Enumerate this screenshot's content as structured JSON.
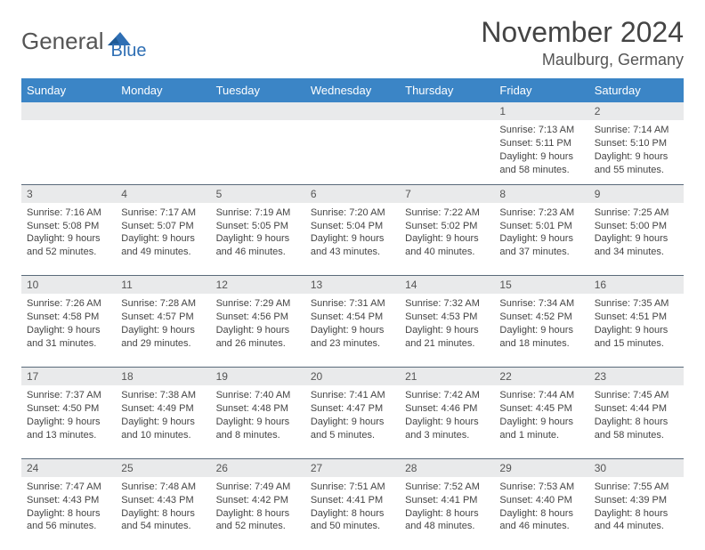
{
  "logo": {
    "part1": "General",
    "part2": "Blue"
  },
  "header": {
    "month": "November 2024",
    "location": "Maulburg, Germany"
  },
  "colors": {
    "header_bg": "#3b85c6",
    "num_row_bg": "#e9eaeb",
    "divider": "#5a6a7a",
    "logo_blue": "#2f6fb4",
    "text": "#444444",
    "background": "#ffffff"
  },
  "typography": {
    "month_fontsize": 32,
    "location_fontsize": 18,
    "dayheader_fontsize": 13,
    "cell_fontsize": 11
  },
  "columns": [
    "Sunday",
    "Monday",
    "Tuesday",
    "Wednesday",
    "Thursday",
    "Friday",
    "Saturday"
  ],
  "weeks": [
    {
      "nums": [
        "",
        "",
        "",
        "",
        "",
        "1",
        "2"
      ],
      "cells": [
        null,
        null,
        null,
        null,
        null,
        {
          "sunrise": "Sunrise: 7:13 AM",
          "sunset": "Sunset: 5:11 PM",
          "daylight1": "Daylight: 9 hours",
          "daylight2": "and 58 minutes."
        },
        {
          "sunrise": "Sunrise: 7:14 AM",
          "sunset": "Sunset: 5:10 PM",
          "daylight1": "Daylight: 9 hours",
          "daylight2": "and 55 minutes."
        }
      ]
    },
    {
      "nums": [
        "3",
        "4",
        "5",
        "6",
        "7",
        "8",
        "9"
      ],
      "cells": [
        {
          "sunrise": "Sunrise: 7:16 AM",
          "sunset": "Sunset: 5:08 PM",
          "daylight1": "Daylight: 9 hours",
          "daylight2": "and 52 minutes."
        },
        {
          "sunrise": "Sunrise: 7:17 AM",
          "sunset": "Sunset: 5:07 PM",
          "daylight1": "Daylight: 9 hours",
          "daylight2": "and 49 minutes."
        },
        {
          "sunrise": "Sunrise: 7:19 AM",
          "sunset": "Sunset: 5:05 PM",
          "daylight1": "Daylight: 9 hours",
          "daylight2": "and 46 minutes."
        },
        {
          "sunrise": "Sunrise: 7:20 AM",
          "sunset": "Sunset: 5:04 PM",
          "daylight1": "Daylight: 9 hours",
          "daylight2": "and 43 minutes."
        },
        {
          "sunrise": "Sunrise: 7:22 AM",
          "sunset": "Sunset: 5:02 PM",
          "daylight1": "Daylight: 9 hours",
          "daylight2": "and 40 minutes."
        },
        {
          "sunrise": "Sunrise: 7:23 AM",
          "sunset": "Sunset: 5:01 PM",
          "daylight1": "Daylight: 9 hours",
          "daylight2": "and 37 minutes."
        },
        {
          "sunrise": "Sunrise: 7:25 AM",
          "sunset": "Sunset: 5:00 PM",
          "daylight1": "Daylight: 9 hours",
          "daylight2": "and 34 minutes."
        }
      ]
    },
    {
      "nums": [
        "10",
        "11",
        "12",
        "13",
        "14",
        "15",
        "16"
      ],
      "cells": [
        {
          "sunrise": "Sunrise: 7:26 AM",
          "sunset": "Sunset: 4:58 PM",
          "daylight1": "Daylight: 9 hours",
          "daylight2": "and 31 minutes."
        },
        {
          "sunrise": "Sunrise: 7:28 AM",
          "sunset": "Sunset: 4:57 PM",
          "daylight1": "Daylight: 9 hours",
          "daylight2": "and 29 minutes."
        },
        {
          "sunrise": "Sunrise: 7:29 AM",
          "sunset": "Sunset: 4:56 PM",
          "daylight1": "Daylight: 9 hours",
          "daylight2": "and 26 minutes."
        },
        {
          "sunrise": "Sunrise: 7:31 AM",
          "sunset": "Sunset: 4:54 PM",
          "daylight1": "Daylight: 9 hours",
          "daylight2": "and 23 minutes."
        },
        {
          "sunrise": "Sunrise: 7:32 AM",
          "sunset": "Sunset: 4:53 PM",
          "daylight1": "Daylight: 9 hours",
          "daylight2": "and 21 minutes."
        },
        {
          "sunrise": "Sunrise: 7:34 AM",
          "sunset": "Sunset: 4:52 PM",
          "daylight1": "Daylight: 9 hours",
          "daylight2": "and 18 minutes."
        },
        {
          "sunrise": "Sunrise: 7:35 AM",
          "sunset": "Sunset: 4:51 PM",
          "daylight1": "Daylight: 9 hours",
          "daylight2": "and 15 minutes."
        }
      ]
    },
    {
      "nums": [
        "17",
        "18",
        "19",
        "20",
        "21",
        "22",
        "23"
      ],
      "cells": [
        {
          "sunrise": "Sunrise: 7:37 AM",
          "sunset": "Sunset: 4:50 PM",
          "daylight1": "Daylight: 9 hours",
          "daylight2": "and 13 minutes."
        },
        {
          "sunrise": "Sunrise: 7:38 AM",
          "sunset": "Sunset: 4:49 PM",
          "daylight1": "Daylight: 9 hours",
          "daylight2": "and 10 minutes."
        },
        {
          "sunrise": "Sunrise: 7:40 AM",
          "sunset": "Sunset: 4:48 PM",
          "daylight1": "Daylight: 9 hours",
          "daylight2": "and 8 minutes."
        },
        {
          "sunrise": "Sunrise: 7:41 AM",
          "sunset": "Sunset: 4:47 PM",
          "daylight1": "Daylight: 9 hours",
          "daylight2": "and 5 minutes."
        },
        {
          "sunrise": "Sunrise: 7:42 AM",
          "sunset": "Sunset: 4:46 PM",
          "daylight1": "Daylight: 9 hours",
          "daylight2": "and 3 minutes."
        },
        {
          "sunrise": "Sunrise: 7:44 AM",
          "sunset": "Sunset: 4:45 PM",
          "daylight1": "Daylight: 9 hours",
          "daylight2": "and 1 minute."
        },
        {
          "sunrise": "Sunrise: 7:45 AM",
          "sunset": "Sunset: 4:44 PM",
          "daylight1": "Daylight: 8 hours",
          "daylight2": "and 58 minutes."
        }
      ]
    },
    {
      "nums": [
        "24",
        "25",
        "26",
        "27",
        "28",
        "29",
        "30"
      ],
      "cells": [
        {
          "sunrise": "Sunrise: 7:47 AM",
          "sunset": "Sunset: 4:43 PM",
          "daylight1": "Daylight: 8 hours",
          "daylight2": "and 56 minutes."
        },
        {
          "sunrise": "Sunrise: 7:48 AM",
          "sunset": "Sunset: 4:43 PM",
          "daylight1": "Daylight: 8 hours",
          "daylight2": "and 54 minutes."
        },
        {
          "sunrise": "Sunrise: 7:49 AM",
          "sunset": "Sunset: 4:42 PM",
          "daylight1": "Daylight: 8 hours",
          "daylight2": "and 52 minutes."
        },
        {
          "sunrise": "Sunrise: 7:51 AM",
          "sunset": "Sunset: 4:41 PM",
          "daylight1": "Daylight: 8 hours",
          "daylight2": "and 50 minutes."
        },
        {
          "sunrise": "Sunrise: 7:52 AM",
          "sunset": "Sunset: 4:41 PM",
          "daylight1": "Daylight: 8 hours",
          "daylight2": "and 48 minutes."
        },
        {
          "sunrise": "Sunrise: 7:53 AM",
          "sunset": "Sunset: 4:40 PM",
          "daylight1": "Daylight: 8 hours",
          "daylight2": "and 46 minutes."
        },
        {
          "sunrise": "Sunrise: 7:55 AM",
          "sunset": "Sunset: 4:39 PM",
          "daylight1": "Daylight: 8 hours",
          "daylight2": "and 44 minutes."
        }
      ]
    }
  ]
}
